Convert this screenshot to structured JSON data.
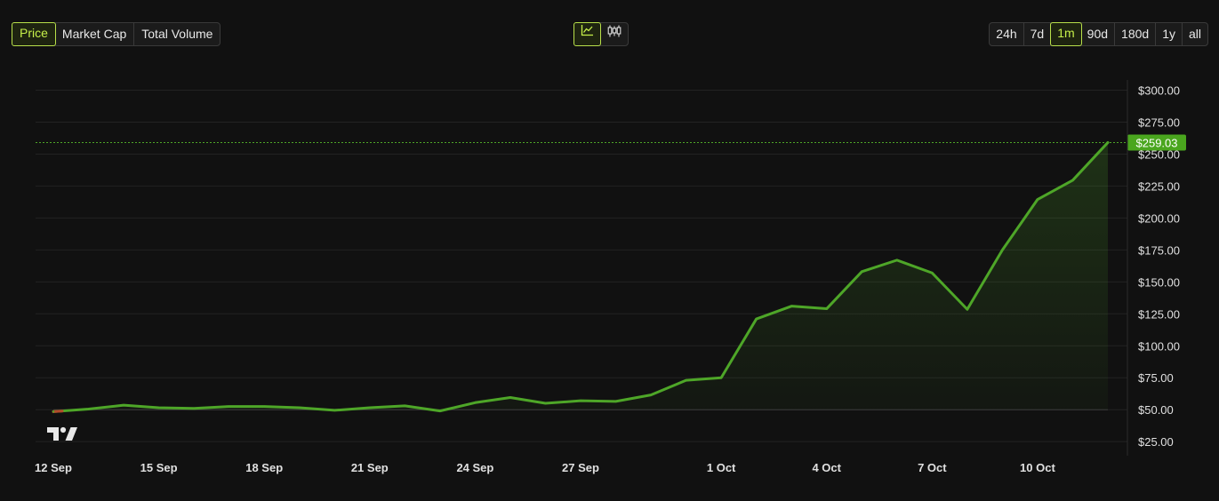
{
  "controls": {
    "metric_tabs": [
      {
        "label": "Price",
        "active": true
      },
      {
        "label": "Market Cap",
        "active": false
      },
      {
        "label": "Total Volume",
        "active": false
      }
    ],
    "chart_type_buttons": [
      {
        "icon": "line-chart-icon",
        "active": true
      },
      {
        "icon": "candlestick-icon",
        "active": false
      }
    ],
    "range_tabs": [
      {
        "label": "24h",
        "active": false
      },
      {
        "label": "7d",
        "active": false
      },
      {
        "label": "1m",
        "active": true
      },
      {
        "label": "90d",
        "active": false
      },
      {
        "label": "180d",
        "active": false
      },
      {
        "label": "1y",
        "active": false
      },
      {
        "label": "all",
        "active": false
      }
    ]
  },
  "colors": {
    "line": "#4ea628",
    "line_start": "#b34a2a",
    "price_badge_bg": "#4aa61e",
    "grid": "#232323",
    "axis_text": "#e0e0e0"
  },
  "watermark": "TradingView logo",
  "chart_data": {
    "type": "area",
    "title": "",
    "xlabel": "",
    "ylabel": "",
    "ylim": [
      14,
      308
    ],
    "y_ticks": [
      25,
      50,
      75,
      100,
      125,
      150,
      175,
      200,
      225,
      250,
      275,
      300
    ],
    "y_tick_labels": [
      "$25.00",
      "$50.00",
      "$75.00",
      "$100.00",
      "$125.00",
      "$150.00",
      "$175.00",
      "$200.00",
      "$225.00",
      "$250.00",
      "$275.00",
      "$300.00"
    ],
    "x_ticks": [
      {
        "day": 0,
        "label": "12 Sep"
      },
      {
        "day": 3,
        "label": "15 Sep"
      },
      {
        "day": 6,
        "label": "18 Sep"
      },
      {
        "day": 9,
        "label": "21 Sep"
      },
      {
        "day": 12,
        "label": "24 Sep"
      },
      {
        "day": 15,
        "label": "27 Sep"
      },
      {
        "day": 19,
        "label": "1 Oct"
      },
      {
        "day": 22,
        "label": "4 Oct"
      },
      {
        "day": 25,
        "label": "7 Oct"
      },
      {
        "day": 28,
        "label": "10 Oct"
      }
    ],
    "x_day_max": 30.2,
    "series": [
      {
        "values": [
          [
            0,
            48.5
          ],
          [
            1,
            50.5
          ],
          [
            2,
            53.5
          ],
          [
            3,
            51.5
          ],
          [
            4,
            51
          ],
          [
            5,
            52.5
          ],
          [
            6,
            52.5
          ],
          [
            7,
            51.5
          ],
          [
            8,
            49.5
          ],
          [
            9,
            51.5
          ],
          [
            10,
            53
          ],
          [
            11,
            49
          ],
          [
            12,
            55.5
          ],
          [
            13,
            59.5
          ],
          [
            14,
            55
          ],
          [
            15,
            57
          ],
          [
            16,
            56.5
          ],
          [
            17,
            61.5
          ],
          [
            18,
            73
          ],
          [
            19,
            75
          ],
          [
            20,
            121
          ],
          [
            21,
            131
          ],
          [
            22,
            129
          ],
          [
            23,
            158
          ],
          [
            24,
            167
          ],
          [
            25,
            157
          ],
          [
            26,
            128.5
          ],
          [
            27,
            175
          ],
          [
            28,
            214.5
          ],
          [
            29,
            229.5
          ],
          [
            30,
            259.03
          ]
        ]
      }
    ],
    "last_price": 259.03,
    "last_price_label": "$259.03",
    "grid": true,
    "legend": "none"
  }
}
